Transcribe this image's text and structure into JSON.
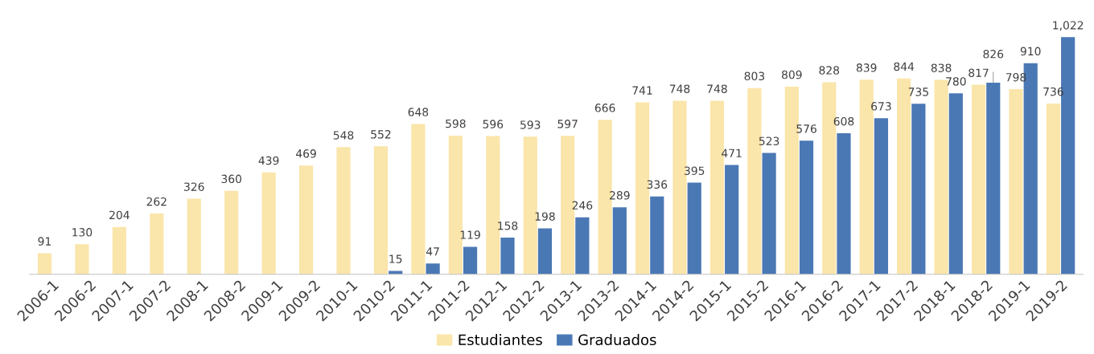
{
  "chart_data": {
    "type": "bar",
    "categories": [
      "2006-1",
      "2006-2",
      "2007-1",
      "2007-2",
      "2008-1",
      "2008-2",
      "2009-1",
      "2009-2",
      "2010-1",
      "2010-2",
      "2011-1",
      "2011-2",
      "2012-1",
      "2012-2",
      "2013-1",
      "2013-2",
      "2014-1",
      "2014-2",
      "2015-1",
      "2015-2",
      "2016-1",
      "2016-2",
      "2017-1",
      "2017-2",
      "2018-1",
      "2018-2",
      "2019-1",
      "2019-2"
    ],
    "series": [
      {
        "name": "Estudiantes",
        "color": "#fae5aa",
        "values": [
          91,
          130,
          204,
          262,
          326,
          360,
          439,
          469,
          548,
          552,
          648,
          598,
          596,
          593,
          597,
          666,
          741,
          748,
          748,
          803,
          809,
          828,
          839,
          844,
          838,
          817,
          798,
          736
        ],
        "value_labels": [
          "91",
          "130",
          "204",
          "262",
          "326",
          "360",
          "439",
          "469",
          "548",
          "552",
          "648",
          "598",
          "596",
          "593",
          "597",
          "666",
          "741",
          "748",
          "748",
          "803",
          "809",
          "828",
          "839",
          "844",
          "838",
          "817",
          "798",
          "736"
        ]
      },
      {
        "name": "Graduados",
        "color": "#4a78b4",
        "values": [
          null,
          null,
          null,
          null,
          null,
          null,
          null,
          null,
          null,
          15,
          47,
          119,
          158,
          198,
          246,
          289,
          336,
          395,
          471,
          523,
          576,
          608,
          673,
          735,
          780,
          826,
          910,
          1022
        ],
        "value_labels": [
          null,
          null,
          null,
          null,
          null,
          null,
          null,
          null,
          null,
          "15",
          "47",
          "119",
          "158",
          "198",
          "246",
          "289",
          "336",
          "395",
          "471",
          "523",
          "576",
          "608",
          "673",
          "735",
          "780",
          "826",
          "910",
          "1,022"
        ]
      }
    ],
    "legend": "bottom",
    "grid": false
  }
}
